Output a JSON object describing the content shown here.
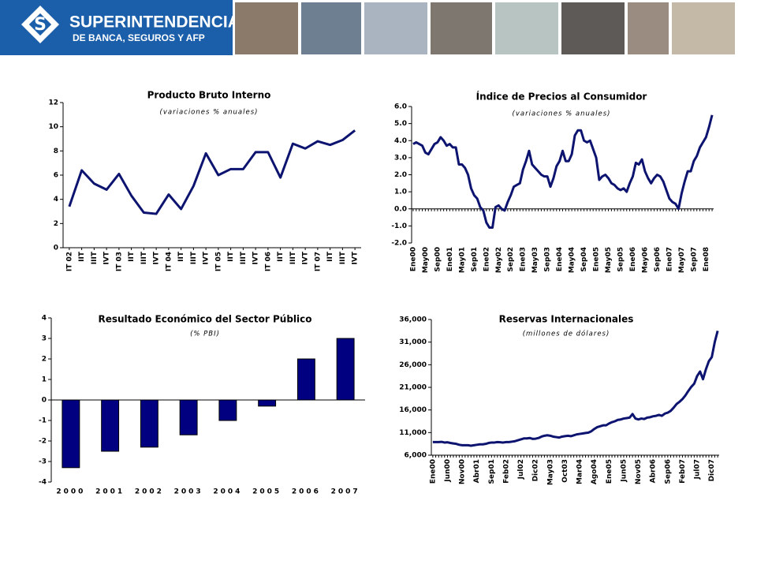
{
  "header": {
    "title": "SUPERINTENDENCIA",
    "subtitle": "DE BANCA, SEGUROS Y AFP"
  },
  "chart_data": [
    {
      "type": "line",
      "title": "Producto Bruto Interno",
      "subtitle": "(variaciones % anuales)",
      "color": "#0d1470",
      "categories": [
        "IT 02",
        "IIT",
        "IIIT",
        "IVT",
        "IT 03",
        "IIT",
        "IIIT",
        "IVT",
        "IT 04",
        "IIT",
        "IIIT",
        "IVT",
        "IT 05",
        "IIT",
        "IIIT",
        "IVT",
        "IT 06",
        "IIT",
        "IIIT",
        "IVT",
        "IT 07",
        "IIT",
        "IIIT",
        "IVT"
      ],
      "values": [
        3.4,
        6.4,
        5.3,
        4.8,
        6.1,
        4.3,
        2.9,
        2.8,
        4.4,
        3.2,
        5.1,
        7.8,
        6.0,
        6.5,
        6.5,
        7.9,
        7.9,
        5.8,
        8.6,
        8.2,
        8.8,
        8.5,
        8.9,
        9.7
      ],
      "ylim": [
        0,
        12
      ],
      "yticks": [
        0,
        2,
        4,
        6,
        8,
        10,
        12
      ]
    },
    {
      "type": "line",
      "title": "Índice de Precios al Consumidor",
      "subtitle": "(variaciones % anuales)",
      "color": "#0d1470",
      "categories": [
        "Ene00",
        null,
        null,
        null,
        "May00",
        null,
        null,
        null,
        "Sep00",
        null,
        null,
        null,
        "Ene01",
        null,
        null,
        null,
        "May01",
        null,
        null,
        null,
        "Sep01",
        null,
        null,
        null,
        "Ene02",
        null,
        null,
        null,
        "May02",
        null,
        null,
        null,
        "Sep02",
        null,
        null,
        null,
        "Ene03",
        null,
        null,
        null,
        "May03",
        null,
        null,
        null,
        "Sep03",
        null,
        null,
        null,
        "Ene04",
        null,
        null,
        null,
        "May04",
        null,
        null,
        null,
        "Sep04",
        null,
        null,
        null,
        "Ene05",
        null,
        null,
        null,
        "May05",
        null,
        null,
        null,
        "Sep05",
        null,
        null,
        null,
        "Ene06",
        null,
        null,
        null,
        "May06",
        null,
        null,
        null,
        "Sep06",
        null,
        null,
        null,
        "Ene07",
        null,
        null,
        null,
        "May07",
        null,
        null,
        null,
        "Sep07",
        null,
        null,
        null,
        "Ene08",
        null,
        null
      ],
      "values": [
        3.8,
        3.9,
        3.8,
        3.7,
        3.3,
        3.2,
        3.5,
        3.8,
        3.9,
        4.2,
        4.0,
        3.7,
        3.8,
        3.6,
        3.6,
        2.6,
        2.6,
        2.4,
        2.0,
        1.2,
        0.8,
        0.6,
        0.1,
        -0.1,
        -0.8,
        -1.1,
        -1.1,
        0.1,
        0.2,
        0.0,
        -0.1,
        0.4,
        0.8,
        1.3,
        1.4,
        1.5,
        2.3,
        2.8,
        3.4,
        2.6,
        2.4,
        2.2,
        2.0,
        1.9,
        1.9,
        1.3,
        1.8,
        2.5,
        2.8,
        3.4,
        2.8,
        2.8,
        3.2,
        4.3,
        4.6,
        4.6,
        4.0,
        3.9,
        4.0,
        3.5,
        3.0,
        1.7,
        1.9,
        2.0,
        1.8,
        1.5,
        1.4,
        1.2,
        1.1,
        1.2,
        1.0,
        1.5,
        1.9,
        2.7,
        2.6,
        2.9,
        2.2,
        1.8,
        1.5,
        1.8,
        2.0,
        1.9,
        1.6,
        1.1,
        0.6,
        0.4,
        0.3,
        0.0,
        0.9,
        1.6,
        2.2,
        2.2,
        2.8,
        3.1,
        3.6,
        3.9,
        4.2,
        4.8,
        5.5
      ],
      "ylim": [
        -2,
        6
      ],
      "yticks": [
        {
          "value": -2,
          "label": "-2.0"
        },
        {
          "value": -1,
          "label": "-1.0"
        },
        {
          "value": 0,
          "label": "0.0"
        },
        {
          "value": 1,
          "label": "1.0"
        },
        {
          "value": 2,
          "label": "2.0"
        },
        {
          "value": 3,
          "label": "3.0"
        },
        {
          "value": 4,
          "label": "4.0"
        },
        {
          "value": 5,
          "label": "5.0"
        },
        {
          "value": 6,
          "label": "6.0"
        }
      ]
    },
    {
      "type": "bar",
      "title": "Resultado Económico del Sector Público",
      "subtitle": "(% PBI)",
      "color": "#000080",
      "categories": [
        "2000",
        "2001",
        "2002",
        "2003",
        "2004",
        "2005",
        "2006",
        "2007"
      ],
      "values": [
        -3.3,
        -2.5,
        -2.3,
        -1.7,
        -1.0,
        -0.3,
        2.0,
        3.0
      ],
      "ylim": [
        -4,
        4
      ],
      "yticks": [
        -4,
        -3,
        -2,
        -1,
        0,
        1,
        2,
        3,
        4
      ]
    },
    {
      "type": "line",
      "title": "Reservas Internacionales",
      "subtitle": "(millones de dólares)",
      "color": "#0d1470",
      "categories": [
        "Ene00",
        null,
        null,
        null,
        null,
        "Jun00",
        null,
        null,
        null,
        null,
        "Nov00",
        null,
        null,
        null,
        null,
        "Abr01",
        null,
        null,
        null,
        null,
        "Sep01",
        null,
        null,
        null,
        null,
        "Feb02",
        null,
        null,
        null,
        null,
        "Jul02",
        null,
        null,
        null,
        null,
        "Dic02",
        null,
        null,
        null,
        null,
        "May03",
        null,
        null,
        null,
        null,
        "Oct03",
        null,
        null,
        null,
        null,
        "Mar04",
        null,
        null,
        null,
        null,
        "Ago04",
        null,
        null,
        null,
        null,
        "Ene05",
        null,
        null,
        null,
        null,
        "Jun05",
        null,
        null,
        null,
        null,
        "Nov05",
        null,
        null,
        null,
        null,
        "Abr06",
        null,
        null,
        null,
        null,
        "Sep06",
        null,
        null,
        null,
        null,
        "Feb07",
        null,
        null,
        null,
        null,
        "Jul07",
        null,
        null,
        null,
        null,
        "Dic07",
        null,
        null
      ],
      "values": [
        8900,
        8900,
        8900,
        8950,
        8800,
        8850,
        8700,
        8600,
        8500,
        8300,
        8200,
        8200,
        8200,
        8100,
        8200,
        8300,
        8400,
        8400,
        8500,
        8700,
        8800,
        8800,
        8900,
        8850,
        8800,
        8900,
        8900,
        9000,
        9100,
        9300,
        9500,
        9700,
        9700,
        9800,
        9600,
        9650,
        9800,
        10100,
        10300,
        10400,
        10300,
        10100,
        10000,
        9900,
        10100,
        10200,
        10300,
        10200,
        10400,
        10600,
        10700,
        10800,
        10900,
        11000,
        11300,
        11800,
        12200,
        12400,
        12600,
        12600,
        13000,
        13300,
        13500,
        13800,
        13900,
        14100,
        14200,
        14300,
        15100,
        14100,
        13900,
        14100,
        14000,
        14300,
        14400,
        14600,
        14700,
        14900,
        14700,
        15200,
        15400,
        15800,
        16500,
        17300,
        17800,
        18400,
        19200,
        20200,
        21100,
        21800,
        23500,
        24500,
        22800,
        25000,
        26800,
        27700,
        31000,
        33500
      ],
      "ylim": [
        6000,
        36000
      ],
      "yticks": [
        {
          "value": 6000,
          "label": "6,000"
        },
        {
          "value": 11000,
          "label": "11,000"
        },
        {
          "value": 16000,
          "label": "16,000"
        },
        {
          "value": 21000,
          "label": "21,000"
        },
        {
          "value": 26000,
          "label": "26,000"
        },
        {
          "value": 31000,
          "label": "31,000"
        },
        {
          "value": 36000,
          "label": "36,000"
        }
      ]
    }
  ]
}
